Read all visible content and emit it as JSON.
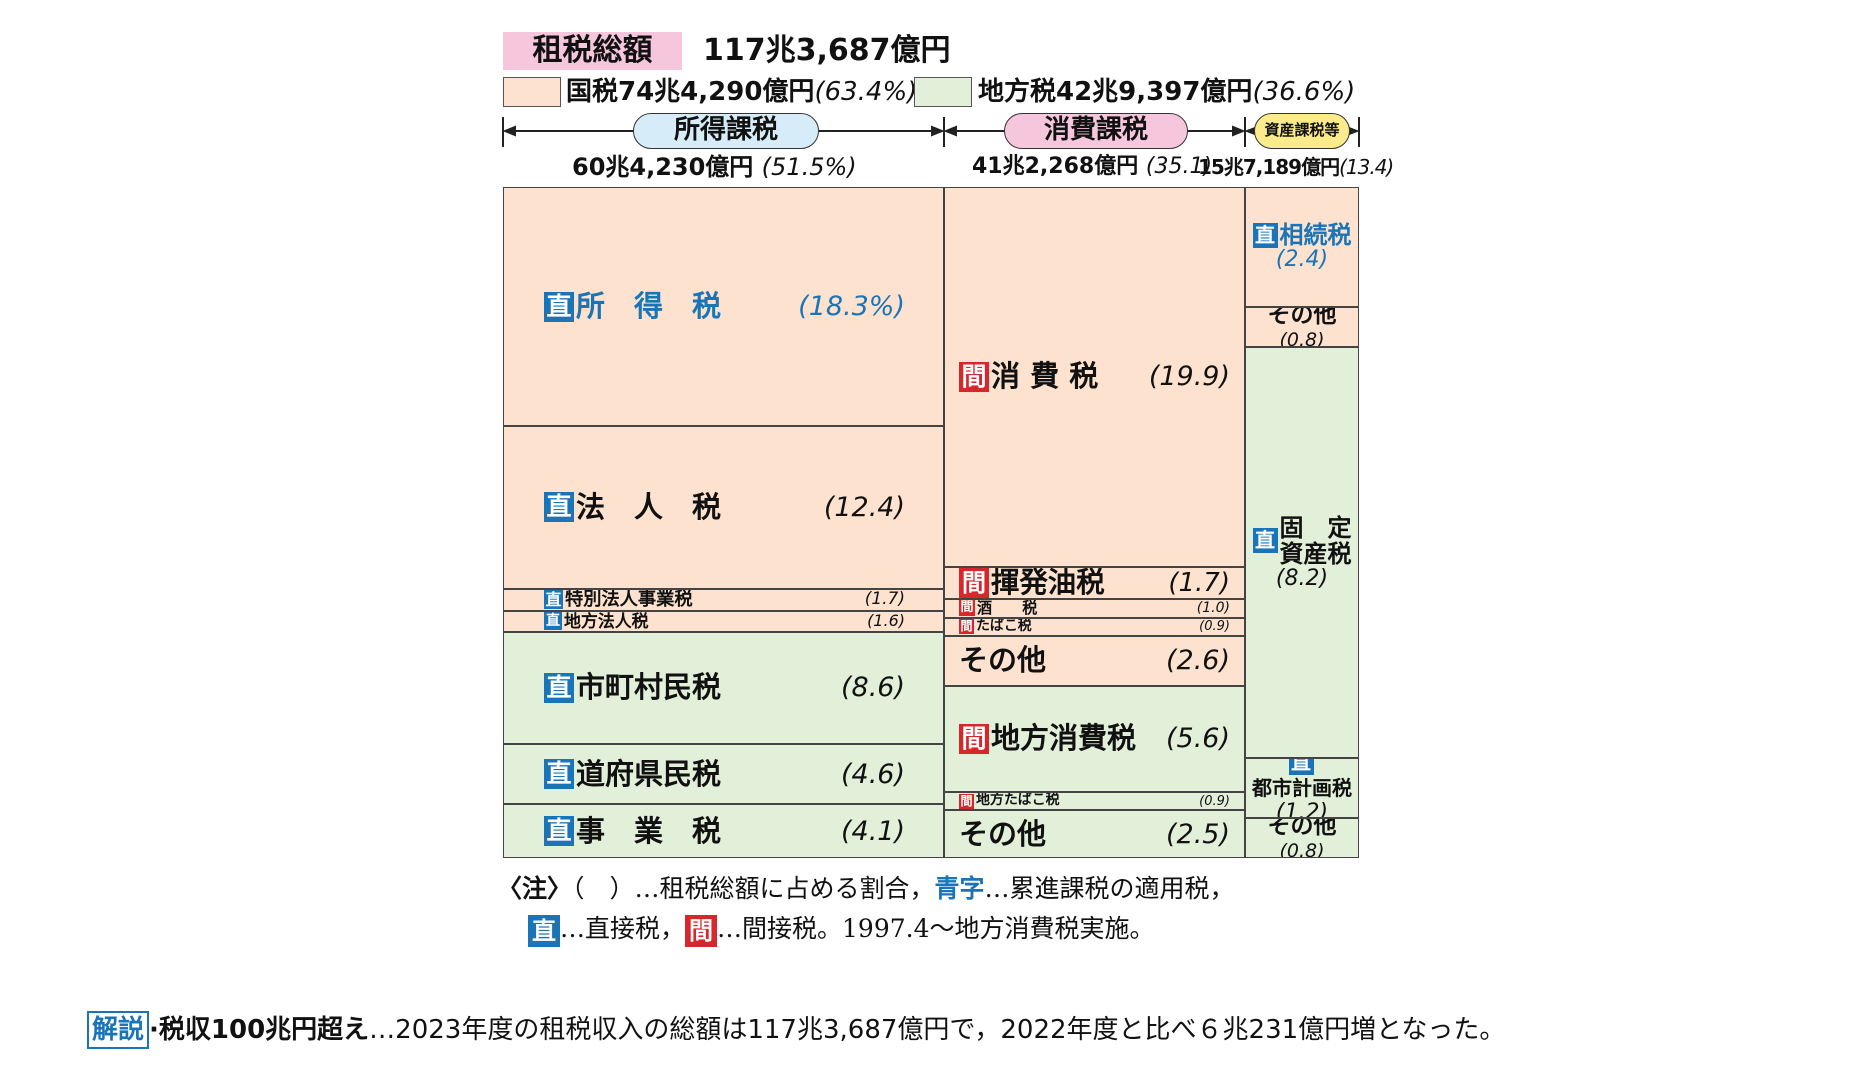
{
  "header": {
    "total_label": "租税総額",
    "total_value": "117兆3,687億円",
    "national_label": "国税74兆4,290億円",
    "national_share": "(63.4%)",
    "local_label": "地方税42兆9,397億円",
    "local_share": "(36.6%)"
  },
  "categories": [
    {
      "label": "所得課税",
      "amount": "60兆4,230億円",
      "share": "(51.5%)"
    },
    {
      "label": "消費課税",
      "amount": "41兆2,268億円",
      "share": "(35.1)"
    },
    {
      "label": "資産課税等",
      "amount": "15兆7,189億円",
      "share": "(13.4)"
    }
  ],
  "badges": {
    "direct": "直",
    "indirect": "間"
  },
  "colors": {
    "national": "#fde3cf",
    "local": "#e2efd9",
    "progressive": "#1a74b8",
    "direct_badge": "#1a74b8",
    "indirect_badge": "#d7262c",
    "total_badge": "#f6c7dc"
  },
  "chart_data": {
    "type": "treemap",
    "unit": "%",
    "columns": [
      {
        "category": "所得課税",
        "total": 51.5,
        "items": [
          {
            "name": "所　得　税",
            "value": 18.3,
            "value_label": "(18.3%)",
            "type": "direct",
            "level": "national",
            "progressive": true
          },
          {
            "name": "法　人　税",
            "value": 12.4,
            "value_label": "(12.4)",
            "type": "direct",
            "level": "national",
            "progressive": false
          },
          {
            "name": "特別法人事業税",
            "value": 1.7,
            "value_label": "(1.7)",
            "type": "direct",
            "level": "national",
            "progressive": false
          },
          {
            "name": "地方法人税",
            "value": 1.6,
            "value_label": "(1.6)",
            "type": "direct",
            "level": "national",
            "progressive": false
          },
          {
            "name": "市町村民税",
            "value": 8.6,
            "value_label": "(8.6)",
            "type": "direct",
            "level": "local",
            "progressive": false
          },
          {
            "name": "道府県民税",
            "value": 4.6,
            "value_label": "(4.6)",
            "type": "direct",
            "level": "local",
            "progressive": false
          },
          {
            "name": "事　業　税",
            "value": 4.1,
            "value_label": "(4.1)",
            "type": "direct",
            "level": "local",
            "progressive": false
          }
        ]
      },
      {
        "category": "消費課税",
        "total": 35.1,
        "items": [
          {
            "name": "消 費 税",
            "value": 19.9,
            "value_label": "(19.9)",
            "type": "indirect",
            "level": "national",
            "progressive": false
          },
          {
            "name": "揮発油税",
            "value": 1.7,
            "value_label": "(1.7)",
            "type": "indirect",
            "level": "national",
            "progressive": false
          },
          {
            "name": "酒　　税",
            "value": 1.0,
            "value_label": "(1.0)",
            "type": "indirect",
            "level": "national",
            "progressive": false
          },
          {
            "name": "たばこ税",
            "value": 0.9,
            "value_label": "(0.9)",
            "type": "indirect",
            "level": "national",
            "progressive": false
          },
          {
            "name": "その他",
            "value": 2.6,
            "value_label": "(2.6)",
            "type": "none",
            "level": "national",
            "progressive": false
          },
          {
            "name": "地方消費税",
            "value": 5.6,
            "value_label": "(5.6)",
            "type": "indirect",
            "level": "local",
            "progressive": false
          },
          {
            "name": "地方たばこ税",
            "value": 0.9,
            "value_label": "(0.9)",
            "type": "indirect",
            "level": "local",
            "progressive": false
          },
          {
            "name": "その他",
            "value": 2.5,
            "value_label": "(2.5)",
            "type": "none",
            "level": "local",
            "progressive": false
          }
        ]
      },
      {
        "category": "資産課税等",
        "total": 13.4,
        "items": [
          {
            "name": "相続税",
            "value": 2.4,
            "value_label": "(2.4)",
            "type": "direct",
            "level": "national",
            "progressive": true
          },
          {
            "name": "その他",
            "value": 0.8,
            "value_label": "(0.8)",
            "type": "none",
            "level": "national",
            "progressive": false
          },
          {
            "name": "固　定\n資産税",
            "value": 8.2,
            "value_label": "(8.2)",
            "type": "direct",
            "level": "local",
            "progressive": false
          },
          {
            "name": "都市計画税",
            "value": 1.2,
            "value_label": "(1.2)",
            "type": "direct",
            "level": "local",
            "progressive": false
          },
          {
            "name": "その他",
            "value": 0.8,
            "value_label": "(0.8)",
            "type": "none",
            "level": "local",
            "progressive": false
          }
        ]
      }
    ]
  },
  "notes": {
    "prefix": "〈注〉",
    "line1_a": "（　）…租税総額に占める割合，",
    "line1_blue": "青字",
    "line1_b": "…累進課税の適用税，",
    "line2_a": "…直接税，",
    "line2_b": "…間接税。1997.4〜地方消費税実施。"
  },
  "commentary": {
    "badge": "解説",
    "title": "·税収100兆円超え",
    "text": "…2023年度の租税収入の総額は117兆3,687億円で，2022年度と比べ６兆231億円増となった。"
  }
}
